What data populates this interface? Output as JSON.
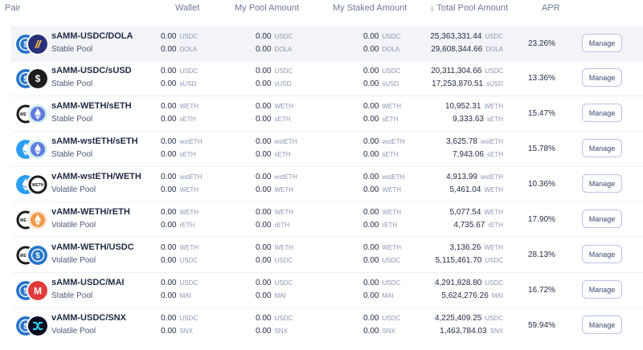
{
  "header": {
    "pair": "Pair",
    "wallet": "Wallet",
    "my_pool_amount": "My Pool Amount",
    "my_staked_amount": "My Staked Amount",
    "total_pool_amount": "↓ Total Pool Amount",
    "apr": "APR"
  },
  "manage_label": "Manage",
  "colors": {
    "usdc": "#2775ca",
    "weth": "#1b1b1b",
    "seth": "#5e7ce0",
    "reth": "#f09a4a",
    "mai": "#e33a3a",
    "snx": "#0b0b22",
    "dola": "#2a2f7a",
    "susd": "#1e1e1e"
  },
  "pools": [
    {
      "name": "sAMM-USDC/DOLA",
      "type": "Stable Pool",
      "icons": [
        "usdc-icon",
        "dola-icon"
      ],
      "wallet": [
        "0.00",
        "0.00"
      ],
      "pool": [
        "0.00",
        "0.00"
      ],
      "staked": [
        "0.00",
        "0.00"
      ],
      "total": [
        "25,363,331.44",
        "29,608,344.66"
      ],
      "tokens": [
        "USDC",
        "DOLA"
      ],
      "apr": "23.26%"
    },
    {
      "name": "sAMM-USDC/sUSD",
      "type": "Stable Pool",
      "icons": [
        "usdc-icon",
        "susd-icon"
      ],
      "wallet": [
        "0.00",
        "0.00"
      ],
      "pool": [
        "0.00",
        "0.00"
      ],
      "staked": [
        "0.00",
        "0.00"
      ],
      "total": [
        "20,311,304.66",
        "17,253,870.51"
      ],
      "tokens": [
        "USDC",
        "sUSD"
      ],
      "apr": "13.36%"
    },
    {
      "name": "sAMM-WETH/sETH",
      "type": "Stable Pool",
      "icons": [
        "weth-icon",
        "seth-icon"
      ],
      "wallet": [
        "0.00",
        "0.00"
      ],
      "pool": [
        "0.00",
        "0.00"
      ],
      "staked": [
        "0.00",
        "0.00"
      ],
      "total": [
        "10,952.31",
        "9,333.63"
      ],
      "tokens": [
        "WETH",
        "sETH"
      ],
      "apr": "15.47%"
    },
    {
      "name": "sAMM-wstETH/sETH",
      "type": "Stable Pool",
      "icons": [
        "wsteth-icon",
        "seth-icon"
      ],
      "wallet": [
        "0.00",
        "0.00"
      ],
      "pool": [
        "0.00",
        "0.00"
      ],
      "staked": [
        "0.00",
        "0.00"
      ],
      "total": [
        "3,625.78",
        "7,943.06"
      ],
      "tokens": [
        "wstETH",
        "sETH"
      ],
      "apr": "15.78%"
    },
    {
      "name": "vAMM-wstETH/WETH",
      "type": "Volatile Pool",
      "icons": [
        "wsteth-icon",
        "weth-icon"
      ],
      "wallet": [
        "0.00",
        "0.00"
      ],
      "pool": [
        "0.00",
        "0.00"
      ],
      "staked": [
        "0.00",
        "0.00"
      ],
      "total": [
        "4,913.99",
        "5,461.04"
      ],
      "tokens": [
        "wstETH",
        "WETH"
      ],
      "apr": "10.36%"
    },
    {
      "name": "vAMM-WETH/rETH",
      "type": "Volatile Pool",
      "icons": [
        "weth-icon",
        "reth-icon"
      ],
      "wallet": [
        "0.00",
        "0.00"
      ],
      "pool": [
        "0.00",
        "0.00"
      ],
      "staked": [
        "0.00",
        "0.00"
      ],
      "total": [
        "5,077.54",
        "4,735.67"
      ],
      "tokens": [
        "WETH",
        "rETH"
      ],
      "apr": "17.90%"
    },
    {
      "name": "vAMM-WETH/USDC",
      "type": "Volatile Pool",
      "icons": [
        "weth-icon",
        "usdc-icon"
      ],
      "wallet": [
        "0.00",
        "0.00"
      ],
      "pool": [
        "0.00",
        "0.00"
      ],
      "staked": [
        "0.00",
        "0.00"
      ],
      "total": [
        "3,136.26",
        "5,115,461.70"
      ],
      "tokens": [
        "WETH",
        "USDC"
      ],
      "apr": "28.13%"
    },
    {
      "name": "sAMM-USDC/MAI",
      "type": "Stable Pool",
      "icons": [
        "usdc-icon",
        "mai-icon"
      ],
      "wallet": [
        "0.00",
        "0.00"
      ],
      "pool": [
        "0.00",
        "0.00"
      ],
      "staked": [
        "0.00",
        "0.00"
      ],
      "total": [
        "4,291,828.80",
        "5,624,276.26"
      ],
      "tokens": [
        "USDC",
        "MAI"
      ],
      "apr": "16.72%"
    },
    {
      "name": "vAMM-USDC/SNX",
      "type": "Volatile Pool",
      "icons": [
        "usdc-icon",
        "snx-icon"
      ],
      "wallet": [
        "0.00",
        "0.00"
      ],
      "pool": [
        "0.00",
        "0.00"
      ],
      "staked": [
        "0.00",
        "0.00"
      ],
      "total": [
        "4,225,409.25",
        "1,463,784.03"
      ],
      "tokens": [
        "USDC",
        "SNX"
      ],
      "apr": "59.94%"
    }
  ]
}
